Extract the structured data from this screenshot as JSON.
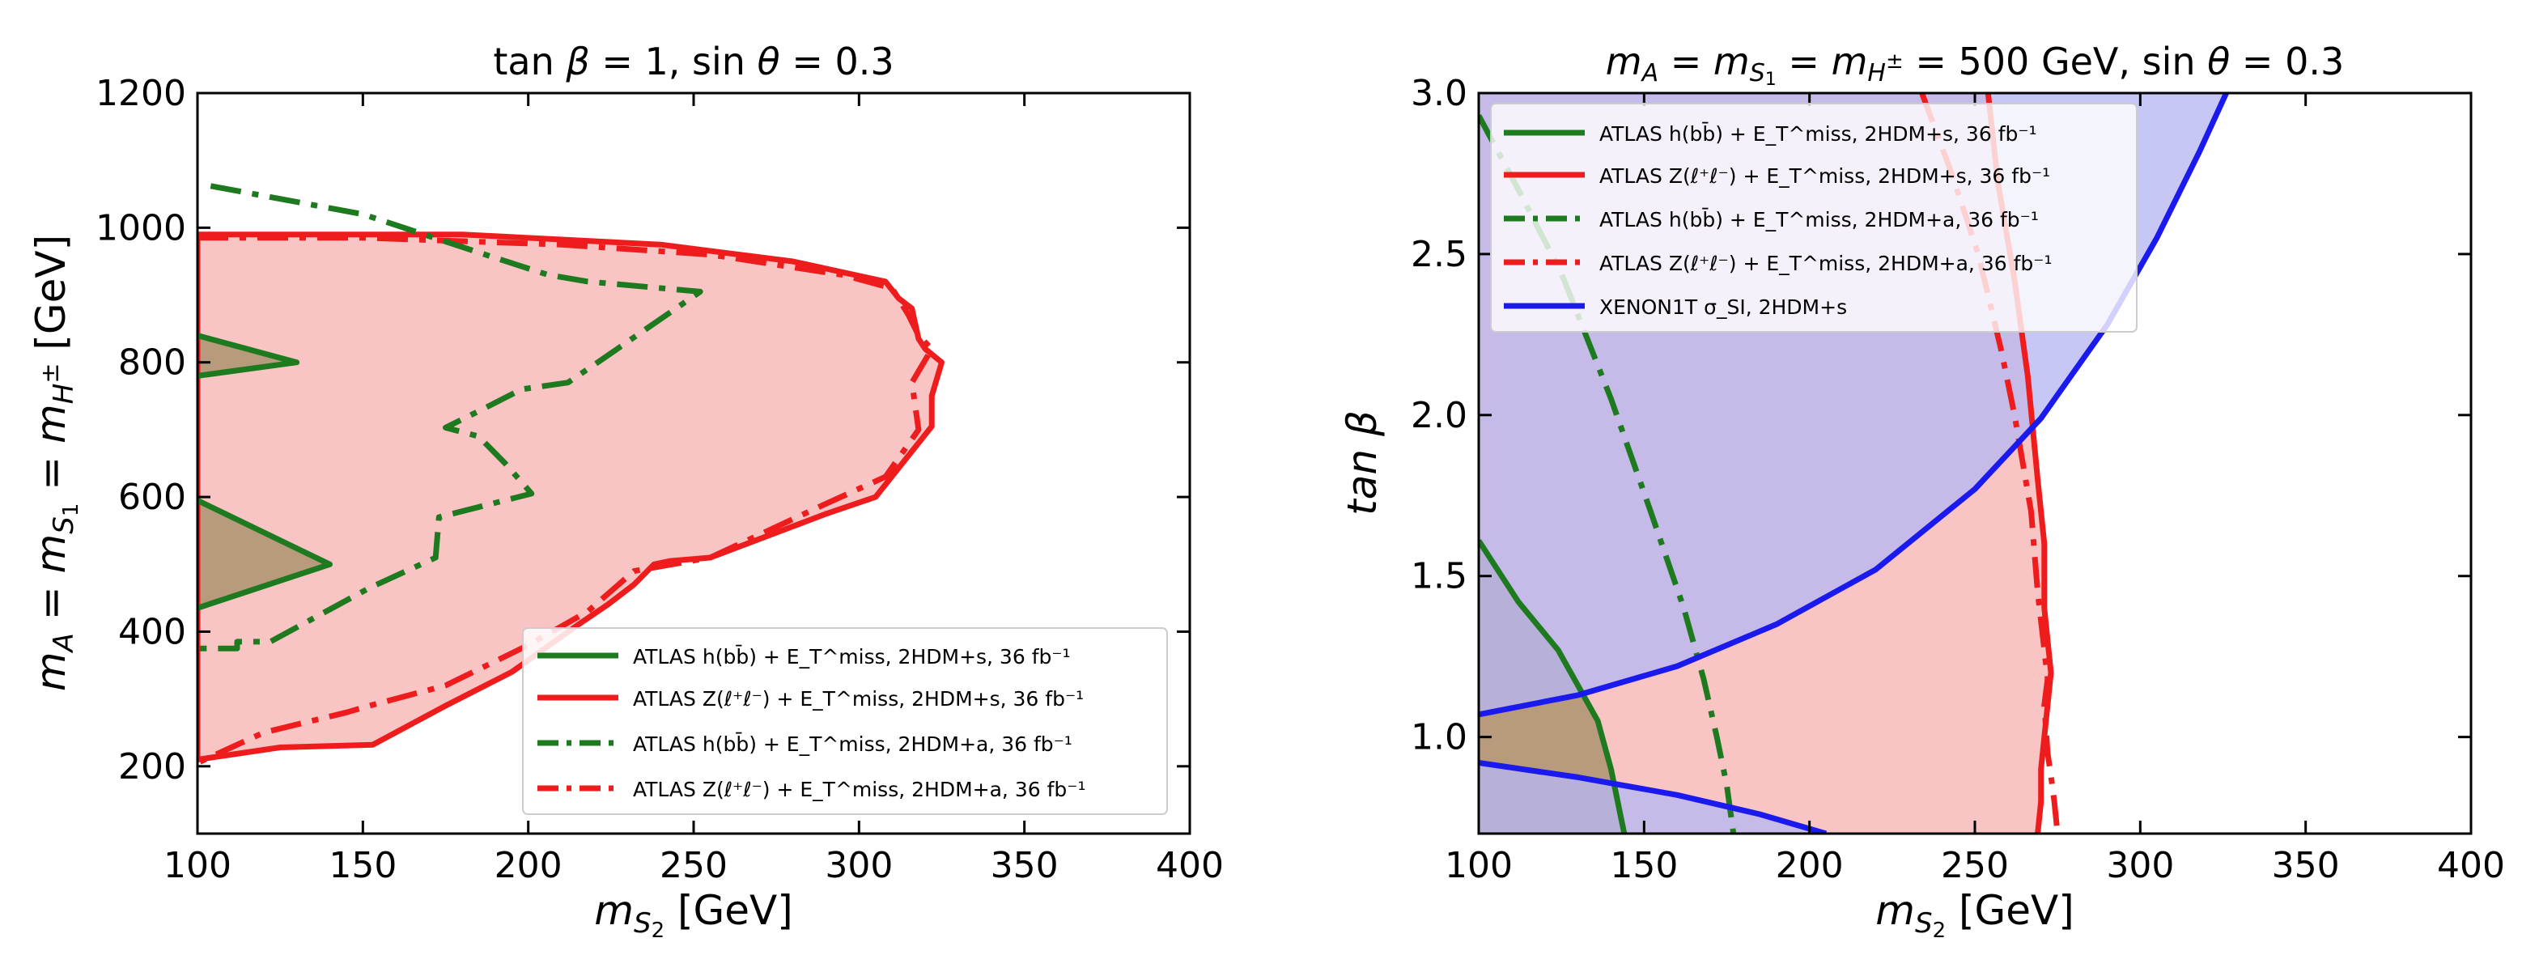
{
  "chart_data": [
    {
      "type": "line",
      "title": "tan β = 1, sin θ = 0.3",
      "xlabel": "m_S2 [GeV]",
      "ylabel": "m_A = m_S1 = m_H± [GeV]",
      "xlim": [
        100,
        400
      ],
      "ylim": [
        100,
        1200
      ],
      "xticks": [
        "100",
        "150",
        "200",
        "250",
        "300",
        "350",
        "400"
      ],
      "yticks": [
        "200",
        "400",
        "600",
        "800",
        "1000",
        "1200"
      ],
      "legend_position": "lower-right",
      "series": [
        {
          "name": "ATLAS h(bb̄)+E_T^miss, 2HDM+s, 36 fb⁻¹",
          "color": "#1e7a1e",
          "style": "solid",
          "filled": true,
          "fill": "#b89a7d",
          "polygons": [
            {
              "x": [
                100,
                130,
                100
              ],
              "y": [
                840,
                800,
                780
              ]
            },
            {
              "x": [
                100,
                140,
                100
              ],
              "y": [
                595,
                500,
                435
              ]
            }
          ]
        },
        {
          "name": "ATLAS Z(ℓ⁺ℓ⁻)+E_T^miss, 2HDM+s, 36 fb⁻¹",
          "color": "#ee1c1c",
          "style": "solid",
          "filled": true,
          "fill": "#f9c4c4",
          "x": [
            100,
            100,
            180,
            240,
            280,
            308,
            312,
            316,
            318,
            320,
            325,
            322,
            322,
            305,
            290,
            255,
            243,
            238,
            232,
            224,
            215,
            195,
            175,
            153,
            125,
            100,
            100
          ],
          "y": [
            210,
            990,
            990,
            975,
            950,
            920,
            895,
            880,
            835,
            820,
            800,
            750,
            705,
            600,
            575,
            510,
            505,
            500,
            470,
            440,
            410,
            340,
            290,
            232,
            228,
            210,
            210
          ]
        },
        {
          "name": "ATLAS h(bb̄)+E_T^miss, 2HDM+a, 36 fb⁻¹",
          "color": "#1e7a1e",
          "style": "dashdot",
          "x": [
            104,
            150,
            187,
            206,
            218,
            252,
            221,
            212,
            198,
            186,
            175,
            185,
            193,
            201,
            173,
            172,
            152,
            122,
            112,
            112,
            100
          ],
          "y": [
            1062,
            1020,
            960,
            930,
            920,
            905,
            800,
            770,
            760,
            730,
            703,
            690,
            650,
            605,
            570,
            510,
            465,
            385,
            385,
            375,
            375
          ]
        },
        {
          "name": "ATLAS Z(ℓ⁺ℓ⁻)+E_T^miss, 2HDM+a, 36 fb⁻¹",
          "color": "#ee1c1c",
          "style": "dashdot",
          "x": [
            100,
            150,
            210,
            255,
            295,
            310,
            315,
            318,
            322,
            316,
            318,
            308,
            290,
            255,
            232,
            218,
            200,
            175,
            152,
            145,
            120,
            100
          ],
          "y": [
            985,
            985,
            975,
            960,
            930,
            910,
            870,
            840,
            820,
            770,
            700,
            630,
            590,
            510,
            490,
            430,
            380,
            320,
            290,
            280,
            250,
            205
          ]
        }
      ]
    },
    {
      "type": "line",
      "title": "m_A = m_S1 = m_H± = 500 GeV, sin θ = 0.3",
      "xlabel": "m_S2 [GeV]",
      "ylabel": "tan β",
      "xlim": [
        100,
        400
      ],
      "ylim": [
        0.7,
        3.0
      ],
      "xticks": [
        "100",
        "150",
        "200",
        "250",
        "300",
        "350",
        "400"
      ],
      "yticks": [
        "1.0",
        "1.5",
        "2.0",
        "2.5",
        "3.0"
      ],
      "legend_position": "top-left",
      "series": [
        {
          "name": "ATLAS h(bb̄)+E_T^miss, 2HDM+s, 36 fb⁻¹",
          "color": "#1e7a1e",
          "style": "solid",
          "filled": true,
          "fill": "#b89a7d",
          "x": [
            100,
            112,
            124,
            136,
            140,
            144
          ],
          "y": [
            1.61,
            1.42,
            1.27,
            1.05,
            0.9,
            0.7
          ]
        },
        {
          "name": "ATLAS Z(ℓ⁺ℓ⁻)+E_T^miss, 2HDM+s, 36 fb⁻¹",
          "color": "#ee1c1c",
          "style": "solid",
          "filled": true,
          "fill": "#f9c4c4",
          "x": [
            254,
            257,
            262,
            266,
            269,
            271,
            271,
            273,
            271,
            270,
            270,
            269
          ],
          "y": [
            3.0,
            2.72,
            2.42,
            2.12,
            1.8,
            1.6,
            1.4,
            1.2,
            1.0,
            0.9,
            0.8,
            0.7
          ]
        },
        {
          "name": "ATLAS h(bb̄)+E_T^miss, 2HDM+a, 36 fb⁻¹",
          "color": "#1e7a1e",
          "style": "dashdot",
          "x": [
            100,
            112,
            125,
            140,
            152,
            162,
            168,
            172,
            175,
            177
          ],
          "y": [
            2.93,
            2.7,
            2.44,
            2.05,
            1.7,
            1.4,
            1.18,
            1.0,
            0.85,
            0.7
          ]
        },
        {
          "name": "ATLAS Z(ℓ⁺ℓ⁻)+E_T^miss, 2HDM+a, 36 fb⁻¹",
          "color": "#ee1c1c",
          "style": "dashdot",
          "x": [
            234,
            243,
            251,
            258,
            262,
            267,
            269,
            272,
            271,
            272,
            273,
            274,
            275
          ],
          "y": [
            3.0,
            2.75,
            2.5,
            2.2,
            2.0,
            1.7,
            1.45,
            1.18,
            1.1,
            0.95,
            0.88,
            0.8,
            0.7
          ]
        },
        {
          "name": "XENON1T σ_SI, 2HDM+s",
          "color": "#1a1aee",
          "style": "solid",
          "filled": true,
          "fill": "#b7b7f3",
          "curves": [
            {
              "x": [
                100,
                130,
                160,
                190,
                220,
                250,
                270,
                290,
                305,
                318,
                326
              ],
              "y": [
                1.07,
                1.13,
                1.22,
                1.35,
                1.52,
                1.77,
                1.99,
                2.28,
                2.55,
                2.82,
                3.0
              ]
            },
            {
              "x": [
                100,
                130,
                160,
                185,
                205
              ],
              "y": [
                0.92,
                0.875,
                0.82,
                0.76,
                0.7
              ]
            }
          ]
        }
      ]
    }
  ],
  "panels": [
    {
      "title": "tan β = 1, sin θ = 0.3",
      "xlabel": "[GeV]",
      "ylabel_suffix": "[GeV]",
      "legend": [
        {
          "label": "ATLAS h(bb̄) + E_T^miss, 2HDM+s, 36 fb⁻¹"
        },
        {
          "label": "ATLAS Z(ℓ⁺ℓ⁻) + E_T^miss, 2HDM+s, 36 fb⁻¹"
        },
        {
          "label": "ATLAS h(bb̄) + E_T^miss, 2HDM+a, 36 fb⁻¹"
        },
        {
          "label": "ATLAS Z(ℓ⁺ℓ⁻) + E_T^miss, 2HDM+a, 36 fb⁻¹"
        }
      ]
    },
    {
      "title": "m_A = m_S1 = m_H± = 500 GeV, sin θ = 0.3",
      "xlabel": "[GeV]",
      "ylabel": "tan β",
      "legend": [
        {
          "label": "ATLAS h(bb̄) + E_T^miss, 2HDM+s, 36 fb⁻¹"
        },
        {
          "label": "ATLAS Z(ℓ⁺ℓ⁻) + E_T^miss, 2HDM+s, 36 fb⁻¹"
        },
        {
          "label": "ATLAS h(bb̄) + E_T^miss, 2HDM+a, 36 fb⁻¹"
        },
        {
          "label": "ATLAS Z(ℓ⁺ℓ⁻) + E_T^miss, 2HDM+a, 36 fb⁻¹"
        },
        {
          "label": "XENON1T σ_SI, 2HDM+s"
        }
      ]
    }
  ]
}
